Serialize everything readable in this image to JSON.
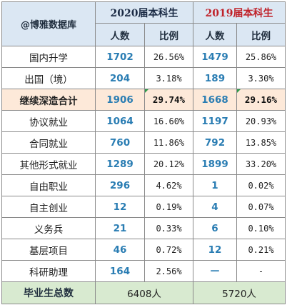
{
  "corner_label": "@博雅数据库",
  "years": [
    {
      "label": "2020届本科生",
      "color": "#1a2a44"
    },
    {
      "label": "2019届本科生",
      "color": "#c0222a"
    }
  ],
  "subheaders": [
    "人数",
    "比例",
    "人数",
    "比例"
  ],
  "rows": [
    {
      "label": "国内升学",
      "n2020": "1702",
      "p2020": "26.56%",
      "n2019": "1479",
      "p2019": "25.86%"
    },
    {
      "label": "出国（境）",
      "n2020": "204",
      "p2020": "3.18%",
      "n2019": "189",
      "p2019": "3.30%"
    },
    {
      "label": "继续深造合计",
      "n2020": "1906",
      "p2020": "29.74%",
      "n2019": "1668",
      "p2019": "29.16%",
      "highlight": true
    },
    {
      "label": "协议就业",
      "n2020": "1064",
      "p2020": "16.60%",
      "n2019": "1197",
      "p2019": "20.93%"
    },
    {
      "label": "合同就业",
      "n2020": "760",
      "p2020": "11.86%",
      "n2019": "792",
      "p2019": "13.85%"
    },
    {
      "label": "其他形式就业",
      "n2020": "1289",
      "p2020": "20.12%",
      "n2019": "1899",
      "p2019": "33.20%"
    },
    {
      "label": "自由职业",
      "n2020": "296",
      "p2020": "4.62%",
      "n2019": "1",
      "p2019": "0.02%"
    },
    {
      "label": "自主创业",
      "n2020": "12",
      "p2020": "0.19%",
      "n2019": "4",
      "p2019": "0.07%"
    },
    {
      "label": "义务兵",
      "n2020": "21",
      "p2020": "0.33%",
      "n2019": "6",
      "p2019": "0.10%"
    },
    {
      "label": "基层项目",
      "n2020": "46",
      "p2020": "0.72%",
      "n2019": "12",
      "p2019": "0.21%"
    },
    {
      "label": "科研助理",
      "n2020": "164",
      "p2020": "2.56%",
      "n2019": "—",
      "p2019": "-"
    }
  ],
  "total": {
    "label": "毕业生总数",
    "v2020": "6408人",
    "v2019": "5720人"
  },
  "colors": {
    "header_bg": "#dbe7f3",
    "highlight_bg": "#fde9d9",
    "total_bg": "#d8ead0",
    "number_blue": "#2a7db3",
    "marker_green": "#2e9a4a"
  }
}
